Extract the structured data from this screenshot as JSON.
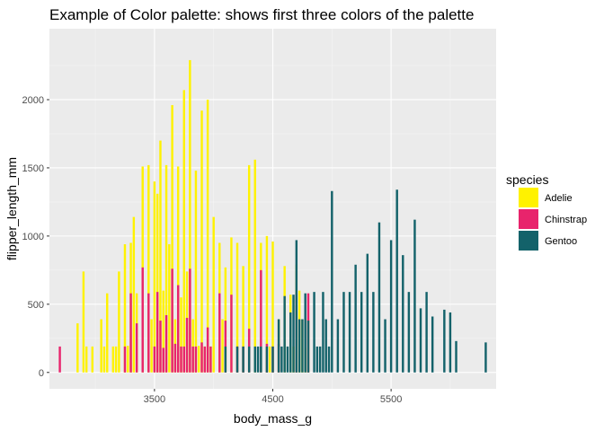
{
  "chart_data": {
    "type": "bar",
    "title": "Example of Color palette: shows first three colors of the palette",
    "xlabel": "body_mass_g",
    "ylabel": "flipper_length_mm",
    "xlim": [
      2612,
      6388
    ],
    "ylim": [
      -120,
      2520
    ],
    "x_ticks": [
      3500,
      4500,
      5500
    ],
    "y_ticks": [
      0,
      500,
      1000,
      1500,
      2000
    ],
    "x_tick_labels": [
      "3500",
      "4500",
      "5500"
    ],
    "y_tick_labels": [
      "0",
      "500",
      "1000",
      "1500",
      "2000"
    ],
    "grid": true,
    "legend": {
      "title": "species",
      "position": "right",
      "entries": [
        {
          "label": "Adelie",
          "color": "#FFF200"
        },
        {
          "label": "Chinstrap",
          "color": "#E8246C"
        },
        {
          "label": "Gentoo",
          "color": "#13626A"
        }
      ]
    },
    "bar_width": 20,
    "series": [
      {
        "name": "Adelie",
        "color": "#FFF200",
        "points": [
          [
            2850,
            360
          ],
          [
            2900,
            740
          ],
          [
            2925,
            190
          ],
          [
            2975,
            190
          ],
          [
            3050,
            390
          ],
          [
            3075,
            190
          ],
          [
            3100,
            580
          ],
          [
            3150,
            190
          ],
          [
            3175,
            190
          ],
          [
            3200,
            740
          ],
          [
            3250,
            940
          ],
          [
            3275,
            195
          ],
          [
            3300,
            950
          ],
          [
            3325,
            1140
          ],
          [
            3350,
            580
          ],
          [
            3400,
            1510
          ],
          [
            3450,
            1520
          ],
          [
            3475,
            390
          ],
          [
            3500,
            1400
          ],
          [
            3525,
            1310
          ],
          [
            3550,
            1700
          ],
          [
            3575,
            600
          ],
          [
            3600,
            1520
          ],
          [
            3625,
            940
          ],
          [
            3650,
            1960
          ],
          [
            3675,
            390
          ],
          [
            3700,
            1510
          ],
          [
            3725,
            550
          ],
          [
            3750,
            2070
          ],
          [
            3775,
            740
          ],
          [
            3800,
            2290
          ],
          [
            3825,
            390
          ],
          [
            3850,
            1480
          ],
          [
            3875,
            195
          ],
          [
            3900,
            1920
          ],
          [
            3925,
            190
          ],
          [
            3950,
            2000
          ],
          [
            3975,
            190
          ],
          [
            4000,
            1140
          ],
          [
            4050,
            950
          ],
          [
            4075,
            390
          ],
          [
            4100,
            770
          ],
          [
            4150,
            990
          ],
          [
            4200,
            950
          ],
          [
            4250,
            780
          ],
          [
            4300,
            1520
          ],
          [
            4350,
            1560
          ],
          [
            4400,
            950
          ],
          [
            4450,
            1000
          ],
          [
            4475,
            190
          ],
          [
            4500,
            960
          ],
          [
            4550,
            390
          ],
          [
            4600,
            780
          ],
          [
            4650,
            570
          ],
          [
            4675,
            190
          ],
          [
            4700,
            790
          ],
          [
            4725,
            600
          ],
          [
            4750,
            390
          ],
          [
            4775,
            180
          ],
          [
            4800,
            390
          ]
        ]
      },
      {
        "name": "Chinstrap",
        "color": "#E8246C",
        "points": [
          [
            2700,
            190
          ],
          [
            3250,
            190
          ],
          [
            3300,
            580
          ],
          [
            3350,
            360
          ],
          [
            3400,
            770
          ],
          [
            3450,
            580
          ],
          [
            3500,
            190
          ],
          [
            3525,
            590
          ],
          [
            3550,
            380
          ],
          [
            3575,
            180
          ],
          [
            3600,
            420
          ],
          [
            3650,
            760
          ],
          [
            3675,
            210
          ],
          [
            3700,
            640
          ],
          [
            3725,
            190
          ],
          [
            3750,
            190
          ],
          [
            3775,
            400
          ],
          [
            3800,
            760
          ],
          [
            3825,
            190
          ],
          [
            3850,
            190
          ],
          [
            3900,
            220
          ],
          [
            3925,
            190
          ],
          [
            3950,
            330
          ],
          [
            3975,
            190
          ],
          [
            4050,
            580
          ],
          [
            4100,
            380
          ],
          [
            4150,
            570
          ],
          [
            4200,
            190
          ],
          [
            4250,
            190
          ],
          [
            4300,
            320
          ],
          [
            4400,
            750
          ],
          [
            4450,
            210
          ],
          [
            4500,
            190
          ],
          [
            4550,
            210
          ],
          [
            4700,
            580
          ],
          [
            4800,
            580
          ]
        ]
      },
      {
        "name": "Gentoo",
        "color": "#13626A",
        "points": [
          [
            4100,
            190
          ],
          [
            4200,
            190
          ],
          [
            4250,
            190
          ],
          [
            4300,
            190
          ],
          [
            4350,
            190
          ],
          [
            4375,
            190
          ],
          [
            4400,
            190
          ],
          [
            4450,
            190
          ],
          [
            4500,
            190
          ],
          [
            4550,
            390
          ],
          [
            4575,
            190
          ],
          [
            4600,
            560
          ],
          [
            4625,
            190
          ],
          [
            4650,
            440
          ],
          [
            4675,
            570
          ],
          [
            4700,
            970
          ],
          [
            4725,
            390
          ],
          [
            4750,
            390
          ],
          [
            4775,
            580
          ],
          [
            4800,
            380
          ],
          [
            4850,
            590
          ],
          [
            4875,
            190
          ],
          [
            4900,
            190
          ],
          [
            4925,
            590
          ],
          [
            4950,
            390
          ],
          [
            4975,
            190
          ],
          [
            5000,
            1330
          ],
          [
            5050,
            390
          ],
          [
            5100,
            590
          ],
          [
            5150,
            590
          ],
          [
            5200,
            790
          ],
          [
            5250,
            590
          ],
          [
            5300,
            870
          ],
          [
            5350,
            590
          ],
          [
            5400,
            1100
          ],
          [
            5450,
            390
          ],
          [
            5500,
            970
          ],
          [
            5550,
            1340
          ],
          [
            5600,
            860
          ],
          [
            5650,
            590
          ],
          [
            5700,
            1120
          ],
          [
            5750,
            470
          ],
          [
            5800,
            590
          ],
          [
            5850,
            410
          ],
          [
            5950,
            460
          ],
          [
            6000,
            440
          ],
          [
            6050,
            230
          ],
          [
            6300,
            220
          ]
        ]
      }
    ]
  }
}
